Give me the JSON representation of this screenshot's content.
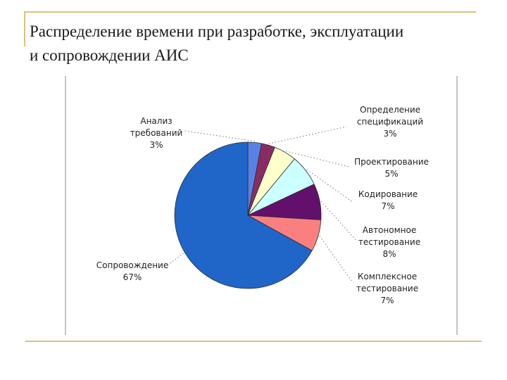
{
  "title": {
    "line1": "Распределение времени при разработке, эксплуатации",
    "line2": "и сопровождении АИС"
  },
  "chart_data": {
    "type": "pie",
    "title": "",
    "slices": [
      {
        "label": "Анализ требований",
        "value": 3,
        "value_label": "3%",
        "color": "#5a82e6"
      },
      {
        "label": "Определение спецификаций",
        "value": 3,
        "value_label": "3%",
        "color": "#8a2c63"
      },
      {
        "label": "Проектирование",
        "value": 5,
        "value_label": "5%",
        "color": "#ffffcc"
      },
      {
        "label": "Кодирование",
        "value": 7,
        "value_label": "7%",
        "color": "#ccffff"
      },
      {
        "label": "Автономное тестирование",
        "value": 8,
        "value_label": "8%",
        "color": "#62106b"
      },
      {
        "label": "Комплексное тестирование",
        "value": 7,
        "value_label": "7%",
        "color": "#fa8080"
      },
      {
        "label": "Сопровождение",
        "value": 67,
        "value_label": "67%",
        "color": "#1f66c8"
      }
    ],
    "legend": "none"
  }
}
